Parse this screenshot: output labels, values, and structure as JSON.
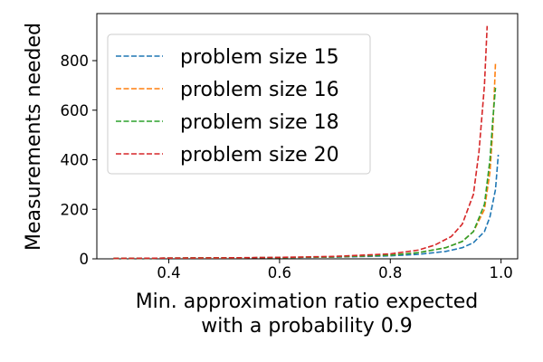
{
  "chart_data": {
    "type": "line",
    "xlabel": [
      "Min. approximation ratio expected",
      "with a probability 0.9"
    ],
    "ylabel": "Measurements needed",
    "xlim": [
      0.27,
      1.03
    ],
    "ylim": [
      0,
      990
    ],
    "xticks": [
      0.4,
      0.6,
      0.8,
      1.0
    ],
    "xtick_labels": [
      "0.4",
      "0.6",
      "0.8",
      "1.0"
    ],
    "yticks": [
      0,
      200,
      400,
      600,
      800
    ],
    "ytick_labels": [
      "0",
      "200",
      "400",
      "600",
      "800"
    ],
    "grid": false,
    "legend_position": "top-left",
    "line_style": "dashed",
    "series": [
      {
        "name": "problem size 15",
        "color": "#1f77b4",
        "x": [
          0.3,
          0.4,
          0.5,
          0.6,
          0.7,
          0.8,
          0.85,
          0.9,
          0.93,
          0.95,
          0.97,
          0.98,
          0.99,
          0.995
        ],
        "y": [
          2,
          3,
          4,
          5,
          7,
          12,
          18,
          30,
          45,
          65,
          110,
          170,
          280,
          420
        ]
      },
      {
        "name": "problem size 16",
        "color": "#ff7f0e",
        "x": [
          0.3,
          0.4,
          0.5,
          0.6,
          0.7,
          0.8,
          0.85,
          0.9,
          0.93,
          0.95,
          0.97,
          0.98,
          0.985,
          0.99
        ],
        "y": [
          2,
          3,
          4,
          5,
          8,
          15,
          25,
          45,
          70,
          110,
          200,
          350,
          520,
          790
        ]
      },
      {
        "name": "problem size 18",
        "color": "#2ca02c",
        "x": [
          0.3,
          0.4,
          0.5,
          0.6,
          0.7,
          0.8,
          0.85,
          0.9,
          0.93,
          0.95,
          0.97,
          0.98,
          0.985,
          0.99
        ],
        "y": [
          2,
          3,
          4,
          5,
          8,
          15,
          25,
          45,
          70,
          110,
          220,
          400,
          560,
          690
        ]
      },
      {
        "name": "problem size 20",
        "color": "#d62728",
        "x": [
          0.3,
          0.4,
          0.5,
          0.6,
          0.7,
          0.8,
          0.85,
          0.88,
          0.91,
          0.93,
          0.95,
          0.96,
          0.97,
          0.975
        ],
        "y": [
          2,
          3,
          4,
          6,
          10,
          20,
          35,
          55,
          90,
          140,
          260,
          430,
          700,
          940
        ]
      }
    ]
  }
}
